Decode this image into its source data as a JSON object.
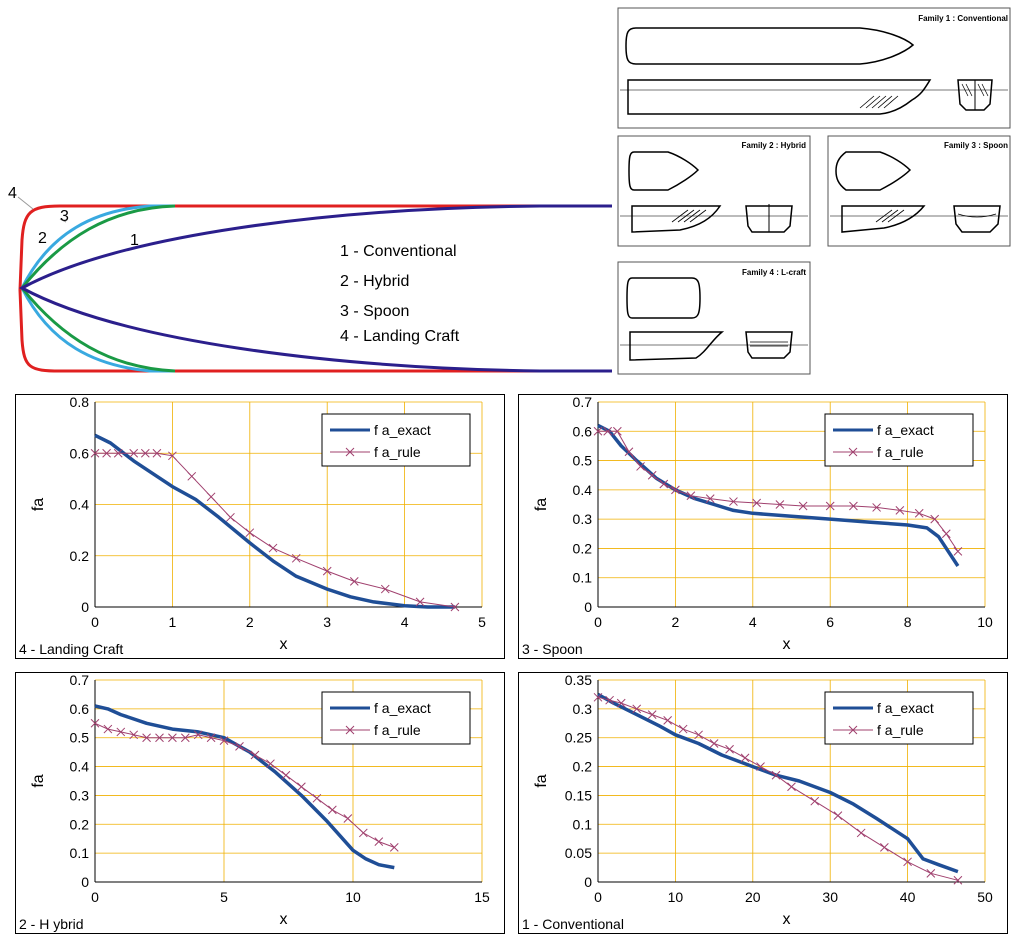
{
  "hull_diagram": {
    "number_labels": [
      "4",
      "3",
      "2",
      "1"
    ],
    "legend": [
      "1 - Conventional",
      "2 - Hybrid",
      "3 - Spoon",
      "4 - Landing Craft"
    ],
    "colors": {
      "conventional": "#2b1f8c",
      "hybrid": "#39a9e0",
      "spoon": "#1a9a45",
      "landing_craft": "#e02020"
    },
    "families": [
      {
        "title": "Family 1 : Conventional"
      },
      {
        "title": "Family 2 : Hybrid"
      },
      {
        "title": "Family 3 : Spoon"
      },
      {
        "title": "Family 4 : L-craft"
      }
    ]
  },
  "chart_data": [
    {
      "type": "line",
      "caption": "4 - Landing Craft",
      "xlabel": "x",
      "ylabel": "fa",
      "xlim": [
        0,
        5
      ],
      "ylim": [
        0,
        0.8
      ],
      "xticks": [
        "0",
        "1",
        "2",
        "3",
        "4",
        "5"
      ],
      "yticks": [
        "0",
        "0.2",
        "0.4",
        "0.6",
        "0.8"
      ],
      "legend": "top-right",
      "series": [
        {
          "name": "f a_exact",
          "style": "line",
          "x": [
            0,
            0.2,
            0.5,
            0.8,
            1.0,
            1.3,
            1.6,
            2.0,
            2.3,
            2.6,
            3.0,
            3.3,
            3.6,
            4.0,
            4.3,
            4.65
          ],
          "y": [
            0.67,
            0.64,
            0.57,
            0.51,
            0.47,
            0.42,
            0.35,
            0.25,
            0.18,
            0.12,
            0.07,
            0.04,
            0.02,
            0.005,
            0.0,
            0.0
          ]
        },
        {
          "name": "f a_rule",
          "style": "marker",
          "x": [
            0,
            0.15,
            0.3,
            0.5,
            0.65,
            0.8,
            1.0,
            1.25,
            1.5,
            1.75,
            2.0,
            2.3,
            2.6,
            3.0,
            3.35,
            3.75,
            4.2,
            4.65
          ],
          "y": [
            0.6,
            0.6,
            0.6,
            0.6,
            0.6,
            0.6,
            0.59,
            0.51,
            0.43,
            0.35,
            0.29,
            0.23,
            0.19,
            0.14,
            0.1,
            0.07,
            0.02,
            0.0
          ]
        }
      ]
    },
    {
      "type": "line",
      "caption": "3 - Spoon",
      "xlabel": "x",
      "ylabel": "fa",
      "xlim": [
        0,
        10
      ],
      "ylim": [
        0,
        0.7
      ],
      "xticks": [
        "0",
        "2",
        "4",
        "6",
        "8",
        "10"
      ],
      "yticks": [
        "0",
        "0.1",
        "0.2",
        "0.3",
        "0.4",
        "0.5",
        "0.6",
        "0.7"
      ],
      "legend": "top-right",
      "series": [
        {
          "name": "f a_exact",
          "style": "line",
          "x": [
            0,
            0.3,
            0.6,
            1.0,
            1.5,
            2.0,
            2.5,
            3.0,
            3.5,
            4.0,
            5.0,
            6.0,
            7.0,
            8.0,
            8.5,
            8.8,
            9.1,
            9.3
          ],
          "y": [
            0.62,
            0.6,
            0.55,
            0.5,
            0.44,
            0.4,
            0.37,
            0.35,
            0.33,
            0.32,
            0.31,
            0.3,
            0.29,
            0.28,
            0.27,
            0.24,
            0.18,
            0.14
          ]
        },
        {
          "name": "f a_rule",
          "style": "marker",
          "x": [
            0,
            0.25,
            0.5,
            0.8,
            1.1,
            1.4,
            1.7,
            2.0,
            2.4,
            2.9,
            3.5,
            4.1,
            4.7,
            5.3,
            6.0,
            6.6,
            7.2,
            7.8,
            8.3,
            8.7,
            9.0,
            9.3
          ],
          "y": [
            0.6,
            0.6,
            0.6,
            0.53,
            0.48,
            0.45,
            0.42,
            0.4,
            0.38,
            0.37,
            0.36,
            0.355,
            0.35,
            0.345,
            0.345,
            0.345,
            0.34,
            0.33,
            0.32,
            0.3,
            0.25,
            0.19
          ]
        }
      ]
    },
    {
      "type": "line",
      "caption": "2 - H ybrid",
      "xlabel": "x",
      "ylabel": "fa",
      "xlim": [
        0,
        15
      ],
      "ylim": [
        0,
        0.7
      ],
      "xticks": [
        "0",
        "5",
        "10",
        "15"
      ],
      "yticks": [
        "0",
        "0.1",
        "0.2",
        "0.3",
        "0.4",
        "0.5",
        "0.6",
        "0.7"
      ],
      "legend": "top-right",
      "series": [
        {
          "name": "f a_exact",
          "style": "line",
          "x": [
            0,
            0.5,
            1.0,
            2.0,
            3.0,
            4.0,
            5.0,
            6.0,
            7.0,
            8.0,
            9.0,
            10.0,
            10.5,
            11.0,
            11.6
          ],
          "y": [
            0.61,
            0.6,
            0.58,
            0.55,
            0.53,
            0.52,
            0.5,
            0.45,
            0.38,
            0.3,
            0.21,
            0.11,
            0.08,
            0.06,
            0.05
          ]
        },
        {
          "name": "f a_rule",
          "style": "marker",
          "x": [
            0,
            0.5,
            1.0,
            1.5,
            2.0,
            2.5,
            3.0,
            3.5,
            4.0,
            4.5,
            5.0,
            5.6,
            6.2,
            6.8,
            7.4,
            8.0,
            8.6,
            9.2,
            9.8,
            10.4,
            11.0,
            11.6
          ],
          "y": [
            0.55,
            0.53,
            0.52,
            0.51,
            0.5,
            0.5,
            0.5,
            0.5,
            0.51,
            0.5,
            0.49,
            0.47,
            0.44,
            0.41,
            0.37,
            0.33,
            0.29,
            0.25,
            0.22,
            0.17,
            0.14,
            0.12
          ]
        }
      ]
    },
    {
      "type": "line",
      "caption": "1 - Conventional",
      "xlabel": "x",
      "ylabel": "fa",
      "xlim": [
        0,
        50
      ],
      "ylim": [
        0,
        0.35
      ],
      "xticks": [
        "0",
        "10",
        "20",
        "30",
        "40",
        "50"
      ],
      "yticks": [
        "0",
        "0.05",
        "0.1",
        "0.15",
        "0.2",
        "0.25",
        "0.3",
        "0.35"
      ],
      "legend": "top-right",
      "series": [
        {
          "name": "f a_exact",
          "style": "line",
          "x": [
            0,
            2,
            5,
            8,
            10,
            13,
            16,
            20,
            23,
            26,
            30,
            33,
            36,
            40,
            42,
            44,
            46.5
          ],
          "y": [
            0.325,
            0.31,
            0.29,
            0.27,
            0.255,
            0.24,
            0.22,
            0.2,
            0.185,
            0.175,
            0.155,
            0.135,
            0.11,
            0.075,
            0.04,
            0.03,
            0.018
          ]
        },
        {
          "name": "f a_rule",
          "style": "marker",
          "x": [
            0,
            1.5,
            3,
            5,
            7,
            9,
            11,
            13,
            15,
            17,
            19,
            21,
            23,
            25,
            28,
            31,
            34,
            37,
            40,
            43,
            46.5
          ],
          "y": [
            0.32,
            0.315,
            0.31,
            0.3,
            0.29,
            0.28,
            0.265,
            0.255,
            0.24,
            0.23,
            0.215,
            0.2,
            0.185,
            0.165,
            0.14,
            0.115,
            0.085,
            0.06,
            0.035,
            0.015,
            0.003
          ]
        }
      ]
    }
  ]
}
